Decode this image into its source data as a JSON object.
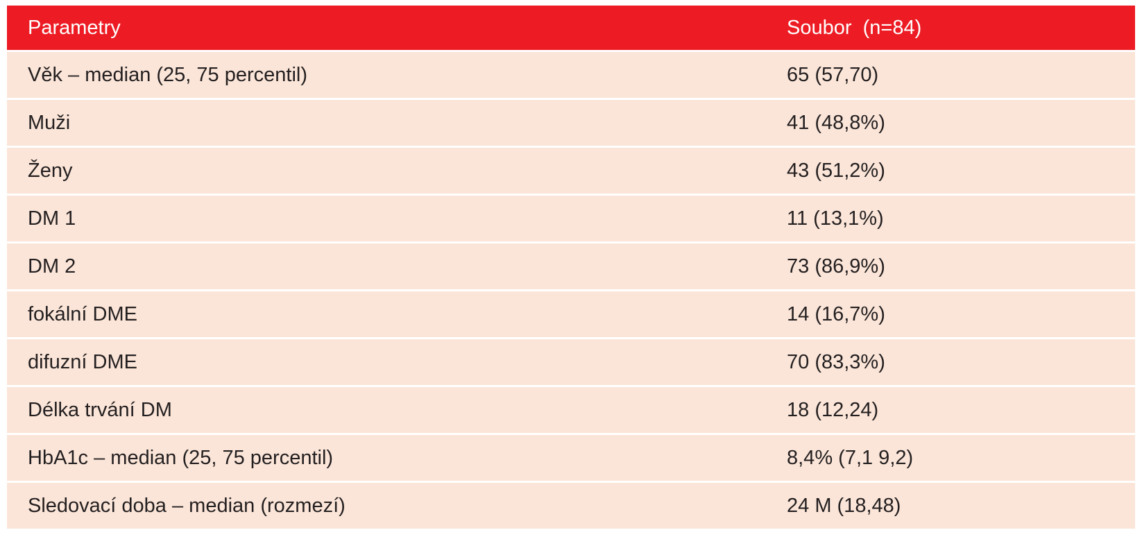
{
  "table": {
    "header": [
      "Parametry",
      "Soubor  (n=84)"
    ],
    "rows": [
      [
        "Věk – median (25, 75 percentil)",
        "65 (57,70)"
      ],
      [
        "Muži",
        "41 (48,8%)"
      ],
      [
        "Ženy",
        "43 (51,2%)"
      ],
      [
        "DM 1",
        "11 (13,1%)"
      ],
      [
        "DM 2",
        "73 (86,9%)"
      ],
      [
        "fokální DME",
        "14 (16,7%)"
      ],
      [
        "difuzní DME",
        "70 (83,3%)"
      ],
      [
        "Délka trvání DM",
        "18 (12,24)"
      ],
      [
        "HbA1c – median (25, 75 percentil)",
        "8,4% (7,1 9,2)"
      ],
      [
        "Sledovací doba – median (rozmezí)",
        "24 M (18,48)"
      ]
    ]
  }
}
